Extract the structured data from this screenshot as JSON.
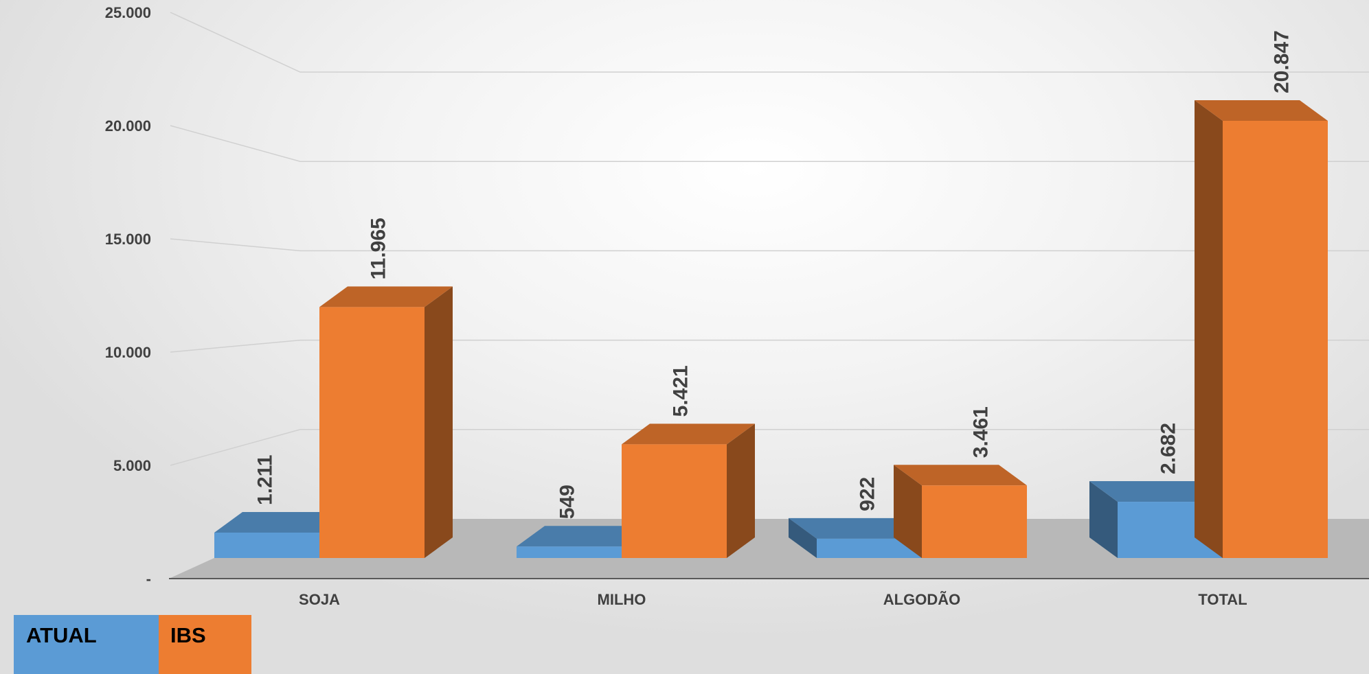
{
  "chart_data": {
    "type": "bar",
    "categories": [
      "SOJA",
      "MILHO",
      "ALGODÃO",
      "TOTAL"
    ],
    "series": [
      {
        "name": "ATUAL",
        "values": [
          1211,
          549,
          922,
          2682
        ],
        "labels": [
          "1.211",
          "549",
          "922",
          "2.682"
        ],
        "color": "#5b9bd5"
      },
      {
        "name": "IBS",
        "values": [
          11965,
          5421,
          3461,
          20847
        ],
        "labels": [
          "11.965",
          "5.421",
          "3.461",
          "20.847"
        ],
        "color": "#ed7d31"
      }
    ],
    "ylim": [
      0,
      25000
    ],
    "yticks": [
      0,
      5000,
      10000,
      15000,
      20000,
      25000
    ],
    "ytick_labels": [
      "-",
      "5.000",
      "10.000",
      "15.000",
      "20.000",
      "25.000"
    ],
    "grid": true,
    "legend_position": "bottom-left",
    "three_d": true
  }
}
